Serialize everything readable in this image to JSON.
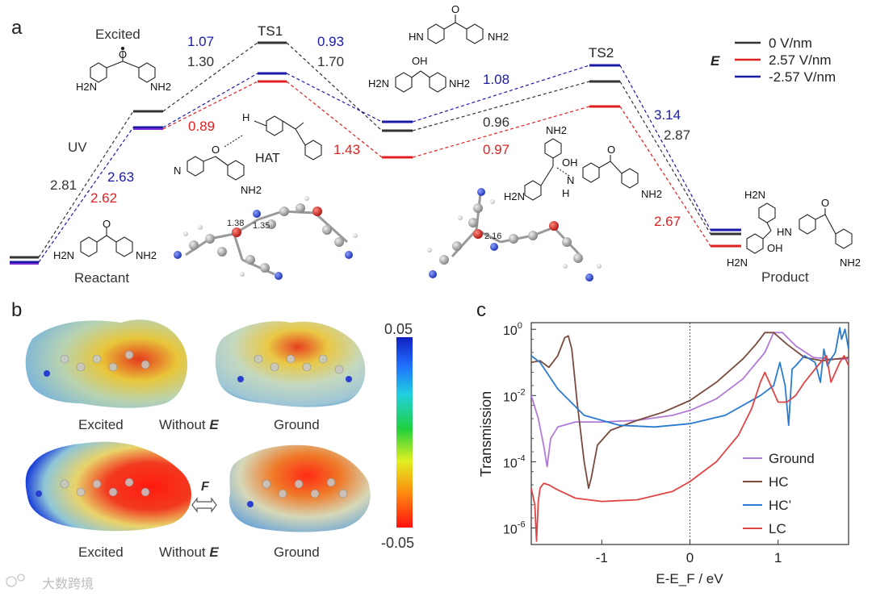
{
  "panel_labels": {
    "a": "a",
    "b": "b",
    "c": "c"
  },
  "panel_a": {
    "states": {
      "reactant": "Reactant",
      "excited": "Excited",
      "ts1": "TS1",
      "ts2": "TS2",
      "product": "Product",
      "uv": "UV",
      "hat": "HAT"
    },
    "field_symbol": "E",
    "legend": [
      {
        "label": "0 V/nm",
        "color": "#333333"
      },
      {
        "label": "2.57 V/nm",
        "color": "#e02020"
      },
      {
        "label": "-2.57 V/nm",
        "color": "#1a1aa8"
      }
    ],
    "energies": {
      "uv_black": "2.81",
      "uv_blue": "2.63",
      "uv_red": "2.62",
      "ts1_left_blue": "1.07",
      "ts1_left_black": "1.30",
      "ts1_left_red": "0.89",
      "ts1_right_blue": "0.93",
      "ts1_right_black": "1.70",
      "ts1_right_red": "1.43",
      "ts2_left_blue": "1.08",
      "ts2_left_black": "0.96",
      "ts2_left_red": "0.97",
      "ts2_right_blue": "3.14",
      "ts2_right_black": "2.87",
      "ts2_right_red": "2.67"
    },
    "geometry_labels": {
      "bond1": "1.38",
      "bond2": "1.35",
      "bond3": "2.16"
    },
    "chem": {
      "h2n": "H2N",
      "nh2": "NH2",
      "n": "N",
      "h": "H",
      "oh": "OH",
      "hn": "HN",
      "o": "O"
    }
  },
  "panel_b": {
    "labels": {
      "excited": "Excited",
      "ground": "Ground",
      "without": "Without",
      "field_e": "E",
      "field_f": "F"
    },
    "colorbar": {
      "max": "0.05",
      "min": "-0.05"
    }
  },
  "chart_data": {
    "type": "line",
    "title": "",
    "xlabel": "E-E_F / eV",
    "ylabel": "Transmission",
    "yscale": "log",
    "xlim": [
      -1.8,
      1.8
    ],
    "ylim_exp": [
      -6.5,
      0.2
    ],
    "xticks": [
      -1,
      0,
      1
    ],
    "xtick_labels": [
      "-1",
      "0",
      "1"
    ],
    "yticks_exp": [
      -6,
      -4,
      -2,
      0
    ],
    "ytick_labels": [
      {
        "base": "10",
        "exp": "-6"
      },
      {
        "base": "10",
        "exp": "-4"
      },
      {
        "base": "10",
        "exp": "-2"
      },
      {
        "base": "10",
        "exp": "0"
      }
    ],
    "series": [
      {
        "name": "Ground",
        "color": "#b07ad8",
        "x": [
          -1.8,
          -1.72,
          -1.66,
          -1.62,
          -1.58,
          -1.5,
          -1.3,
          -1.0,
          -0.6,
          -0.2,
          0.0,
          0.3,
          0.6,
          0.85,
          0.95,
          1.05,
          1.2,
          1.4,
          1.6,
          1.8
        ],
        "log10_y": [
          -2.0,
          -2.7,
          -3.5,
          -4.15,
          -3.3,
          -2.95,
          -2.8,
          -2.8,
          -2.75,
          -2.6,
          -2.45,
          -2.1,
          -1.5,
          -0.7,
          -0.1,
          -0.1,
          -0.5,
          -0.85,
          -0.9,
          -0.9
        ]
      },
      {
        "name": "HC",
        "color": "#7a4a3e",
        "x": [
          -1.8,
          -1.7,
          -1.6,
          -1.5,
          -1.42,
          -1.38,
          -1.34,
          -1.28,
          -1.2,
          -1.15,
          -1.12,
          -1.05,
          -0.9,
          -0.6,
          -0.3,
          0.0,
          0.3,
          0.6,
          0.75,
          0.85,
          0.95,
          1.1,
          1.3,
          1.5,
          1.65,
          1.8
        ],
        "log10_y": [
          -1.0,
          -0.95,
          -1.15,
          -0.8,
          -0.25,
          -0.2,
          -0.6,
          -2.2,
          -4.0,
          -4.8,
          -4.5,
          -3.5,
          -3.05,
          -2.75,
          -2.5,
          -2.15,
          -1.6,
          -0.9,
          -0.45,
          -0.1,
          -0.1,
          -0.45,
          -0.85,
          -0.95,
          -0.9,
          -0.85
        ]
      },
      {
        "name": "HC’",
        "color": "#2b7bd0",
        "x": [
          -1.8,
          -1.7,
          -1.5,
          -1.2,
          -0.8,
          -0.4,
          0.0,
          0.4,
          0.8,
          0.95,
          1.02,
          1.08,
          1.12,
          1.16,
          1.2,
          1.3,
          1.42,
          1.48,
          1.52,
          1.56,
          1.6,
          1.65,
          1.7,
          1.72,
          1.76,
          1.8
        ],
        "log10_y": [
          -0.8,
          -1.0,
          -1.8,
          -2.6,
          -2.9,
          -2.95,
          -2.85,
          -2.6,
          -2.0,
          -1.7,
          -1.0,
          -1.7,
          -2.9,
          -1.2,
          -1.1,
          -0.8,
          -1.0,
          -1.6,
          -0.6,
          -1.1,
          -0.9,
          -0.7,
          0.05,
          -0.3,
          0.0,
          -0.6
        ]
      },
      {
        "name": "LC",
        "color": "#e04545",
        "x": [
          -1.8,
          -1.76,
          -1.74,
          -1.72,
          -1.7,
          -1.66,
          -1.6,
          -1.5,
          -1.3,
          -1.0,
          -0.6,
          -0.2,
          0.0,
          0.3,
          0.55,
          0.7,
          0.8,
          0.85,
          0.9,
          1.0,
          1.1,
          1.2,
          1.3,
          1.45,
          1.55,
          1.6,
          1.65,
          1.7,
          1.75,
          1.8
        ],
        "log10_y": [
          -4.8,
          -5.3,
          -6.4,
          -5.2,
          -4.8,
          -4.65,
          -4.7,
          -4.85,
          -5.1,
          -5.2,
          -5.15,
          -4.9,
          -4.6,
          -4.0,
          -3.2,
          -2.4,
          -1.6,
          -1.3,
          -1.6,
          -2.2,
          -2.2,
          -2.0,
          -1.6,
          -1.1,
          -0.8,
          -1.6,
          -1.3,
          -1.0,
          -0.8,
          -1.1
        ]
      }
    ],
    "legend": [
      "Ground",
      "HC",
      "HC’",
      "LC"
    ]
  },
  "watermark": "大数跨境"
}
